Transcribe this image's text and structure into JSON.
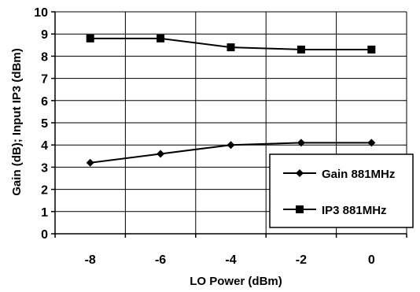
{
  "chart_data": {
    "type": "line",
    "title": "",
    "xlabel": "LO Power (dBm)",
    "ylabel": "Gain (dB); Input IP3 (dBm)",
    "x": [
      -8,
      -6,
      -4,
      -2,
      0
    ],
    "x_tick_labels": [
      "-8",
      "-6",
      "-4",
      "-2",
      "0"
    ],
    "xlim": [
      -9,
      1
    ],
    "ylim": [
      0,
      10
    ],
    "y_ticks": [
      0,
      1,
      2,
      3,
      4,
      5,
      6,
      7,
      8,
      9,
      10
    ],
    "y_tick_labels": [
      "0",
      "1",
      "2",
      "3",
      "4",
      "5",
      "6",
      "7",
      "8",
      "9",
      "10"
    ],
    "grid": "vertical and horizontal, black",
    "legend_position": "bottom-right",
    "series": [
      {
        "name": "Gain 881MHz",
        "marker": "diamond",
        "color": "#000000",
        "values": [
          3.2,
          3.6,
          4.0,
          4.1,
          4.1
        ]
      },
      {
        "name": "IP3 881MHz",
        "marker": "square",
        "color": "#000000",
        "values": [
          8.8,
          8.8,
          8.4,
          8.3,
          8.3
        ]
      }
    ]
  }
}
